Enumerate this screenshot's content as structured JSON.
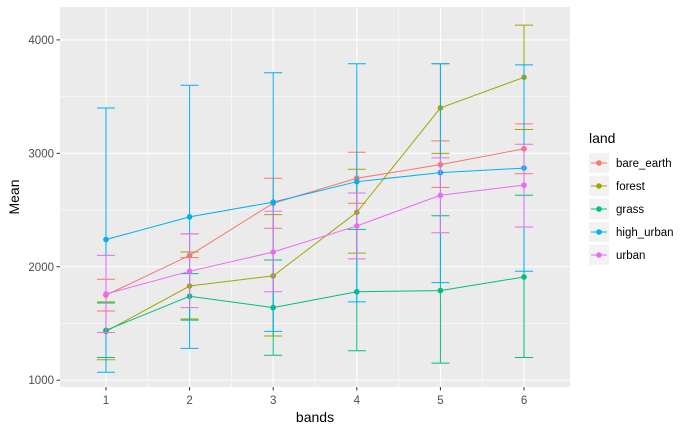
{
  "chart_data": {
    "type": "line",
    "xlabel": "bands",
    "ylabel": "Mean",
    "x": [
      1,
      2,
      3,
      4,
      5,
      6
    ],
    "xlim": [
      0.45,
      6.55
    ],
    "ylim": [
      940,
      4290
    ],
    "x_ticks": [
      1,
      2,
      3,
      4,
      5,
      6
    ],
    "y_ticks": [
      1000,
      2000,
      3000,
      4000
    ],
    "grid": true,
    "legend": {
      "title": "land",
      "position": "right"
    },
    "series": [
      {
        "name": "bare_earth",
        "color": "#F8766D",
        "values": [
          1750,
          2100,
          2560,
          2780,
          2900,
          3040
        ],
        "lower": [
          1610,
          2080,
          2340,
          2560,
          2700,
          2820
        ],
        "upper": [
          1890,
          2290,
          2780,
          3010,
          3110,
          3260
        ]
      },
      {
        "name": "forest",
        "color": "#A3A500",
        "values": [
          1430,
          1830,
          1920,
          2480,
          3400,
          3670
        ],
        "lower": [
          1180,
          1540,
          1390,
          2120,
          3000,
          3210
        ],
        "upper": [
          1690,
          2130,
          2460,
          2860,
          3790,
          4130
        ]
      },
      {
        "name": "grass",
        "color": "#00BF7D",
        "values": [
          1440,
          1740,
          1640,
          1780,
          1790,
          1910
        ],
        "lower": [
          1200,
          1530,
          1220,
          1260,
          1150,
          1200
        ],
        "upper": [
          1680,
          1940,
          2060,
          2330,
          2450,
          2630
        ]
      },
      {
        "name": "high_urban",
        "color": "#00B0F6",
        "values": [
          2240,
          2440,
          2570,
          2750,
          2830,
          2870
        ],
        "lower": [
          1070,
          1280,
          1430,
          1690,
          1860,
          1960
        ],
        "upper": [
          3400,
          3600,
          3710,
          3790,
          3790,
          3780
        ]
      },
      {
        "name": "urban",
        "color": "#E76BF3",
        "values": [
          1760,
          1960,
          2130,
          2360,
          2630,
          2720
        ],
        "lower": [
          1420,
          1640,
          1780,
          2070,
          2300,
          2350
        ],
        "upper": [
          2100,
          2290,
          2490,
          2650,
          2960,
          3080
        ]
      }
    ]
  }
}
